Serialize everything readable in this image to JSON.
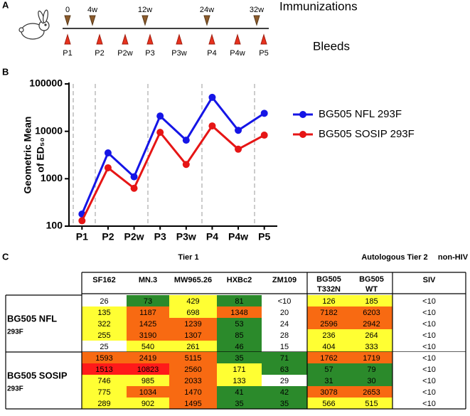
{
  "panel_labels": [
    "A",
    "B",
    "C"
  ],
  "timeline": {
    "immunizations_label": "Immunizations",
    "immunizations": [
      "0",
      "4w",
      "12w",
      "24w",
      "32w"
    ],
    "bleeds_label": "Bleeds",
    "bleeds": [
      "P1",
      "P2",
      "P2w",
      "P3",
      "P3w",
      "P4",
      "P4w",
      "P5"
    ]
  },
  "chart_data": {
    "type": "line",
    "categories": [
      "P1",
      "P2",
      "P2w",
      "P3",
      "P3w",
      "P4",
      "P4w",
      "P5"
    ],
    "ylabel": [
      "Geometric Mean",
      "of ED₅₀"
    ],
    "ylim": [
      100,
      100000
    ],
    "yticks": [
      100,
      1000,
      10000,
      100000
    ],
    "log_scale": true,
    "legend": "right",
    "series": [
      {
        "name": "BG505 NFL 293F",
        "color": "#1515e6",
        "values": [
          180,
          3500,
          1100,
          21000,
          6500,
          52000,
          10500,
          24000
        ]
      },
      {
        "name": "BG505 SOSIP 293F",
        "color": "#e61515",
        "values": [
          130,
          1700,
          630,
          9500,
          2000,
          13000,
          4200,
          8300
        ]
      }
    ]
  },
  "table": {
    "groups": [
      "Tier 1",
      "Autologous Tier 2",
      "non-HIV"
    ],
    "columns": [
      [
        "SF162"
      ],
      [
        "MN.3"
      ],
      [
        "MW965.26"
      ],
      [
        "HXBc2"
      ],
      [
        "ZM109"
      ],
      [
        "BG505",
        "T332N"
      ],
      [
        "BG505",
        "WT"
      ],
      [
        "SIV"
      ]
    ],
    "row_groups": [
      {
        "label": [
          "BG505 NFL",
          "293F"
        ],
        "rows": [
          [
            "26",
            "73",
            "429",
            "81",
            "<10",
            "126",
            "185",
            "<10"
          ],
          [
            "135",
            "1187",
            "698",
            "1348",
            "20",
            "7182",
            "6203",
            "<10"
          ],
          [
            "322",
            "1425",
            "1239",
            "53",
            "24",
            "2596",
            "2942",
            "<10"
          ],
          [
            "255",
            "3190",
            "1307",
            "85",
            "28",
            "236",
            "264",
            "<10"
          ],
          [
            "25",
            "540",
            "261",
            "46",
            "15",
            "404",
            "333",
            "<10"
          ]
        ],
        "colors": [
          [
            "#ffffff",
            "#2b8a2b",
            "#ffff33",
            "#2b8a2b",
            "#ffffff",
            "#ffff33",
            "#ffff33",
            "#ffffff"
          ],
          [
            "#ffff33",
            "#f86a12",
            "#ffff33",
            "#f86a12",
            "#ffffff",
            "#f86a12",
            "#f86a12",
            "#ffffff"
          ],
          [
            "#ffff33",
            "#f86a12",
            "#f86a12",
            "#2b8a2b",
            "#ffffff",
            "#f86a12",
            "#f86a12",
            "#ffffff"
          ],
          [
            "#ffff33",
            "#f86a12",
            "#f86a12",
            "#2b8a2b",
            "#ffffff",
            "#ffff33",
            "#ffff33",
            "#ffffff"
          ],
          [
            "#ffffff",
            "#ffff33",
            "#ffff33",
            "#2b8a2b",
            "#ffffff",
            "#ffff33",
            "#ffff33",
            "#ffffff"
          ]
        ]
      },
      {
        "label": [
          "BG505 SOSIP",
          "293F"
        ],
        "rows": [
          [
            "1593",
            "2419",
            "5115",
            "35",
            "71",
            "1762",
            "1719",
            "<10"
          ],
          [
            "1513",
            "10823",
            "2560",
            "171",
            "63",
            "57",
            "79",
            "<10"
          ],
          [
            "746",
            "985",
            "2033",
            "133",
            "29",
            "31",
            "30",
            "<10"
          ],
          [
            "775",
            "1034",
            "1470",
            "41",
            "42",
            "3078",
            "2653",
            "<10"
          ],
          [
            "289",
            "902",
            "1495",
            "35",
            "35",
            "566",
            "515",
            "<10"
          ]
        ],
        "colors": [
          [
            "#f86a12",
            "#f86a12",
            "#f86a12",
            "#2b8a2b",
            "#2b8a2b",
            "#f86a12",
            "#f86a12",
            "#ffffff"
          ],
          [
            "#ff1a1a",
            "#ff1a1a",
            "#f86a12",
            "#ffff33",
            "#2b8a2b",
            "#2b8a2b",
            "#2b8a2b",
            "#ffffff"
          ],
          [
            "#ffff33",
            "#ffff33",
            "#f86a12",
            "#ffff33",
            "#ffffff",
            "#2b8a2b",
            "#2b8a2b",
            "#ffffff"
          ],
          [
            "#ffff33",
            "#f86a12",
            "#f86a12",
            "#2b8a2b",
            "#2b8a2b",
            "#f86a12",
            "#f86a12",
            "#ffffff"
          ],
          [
            "#ffff33",
            "#ffff33",
            "#f86a12",
            "#2b8a2b",
            "#2b8a2b",
            "#ffff33",
            "#ffff33",
            "#ffffff"
          ]
        ]
      }
    ]
  }
}
